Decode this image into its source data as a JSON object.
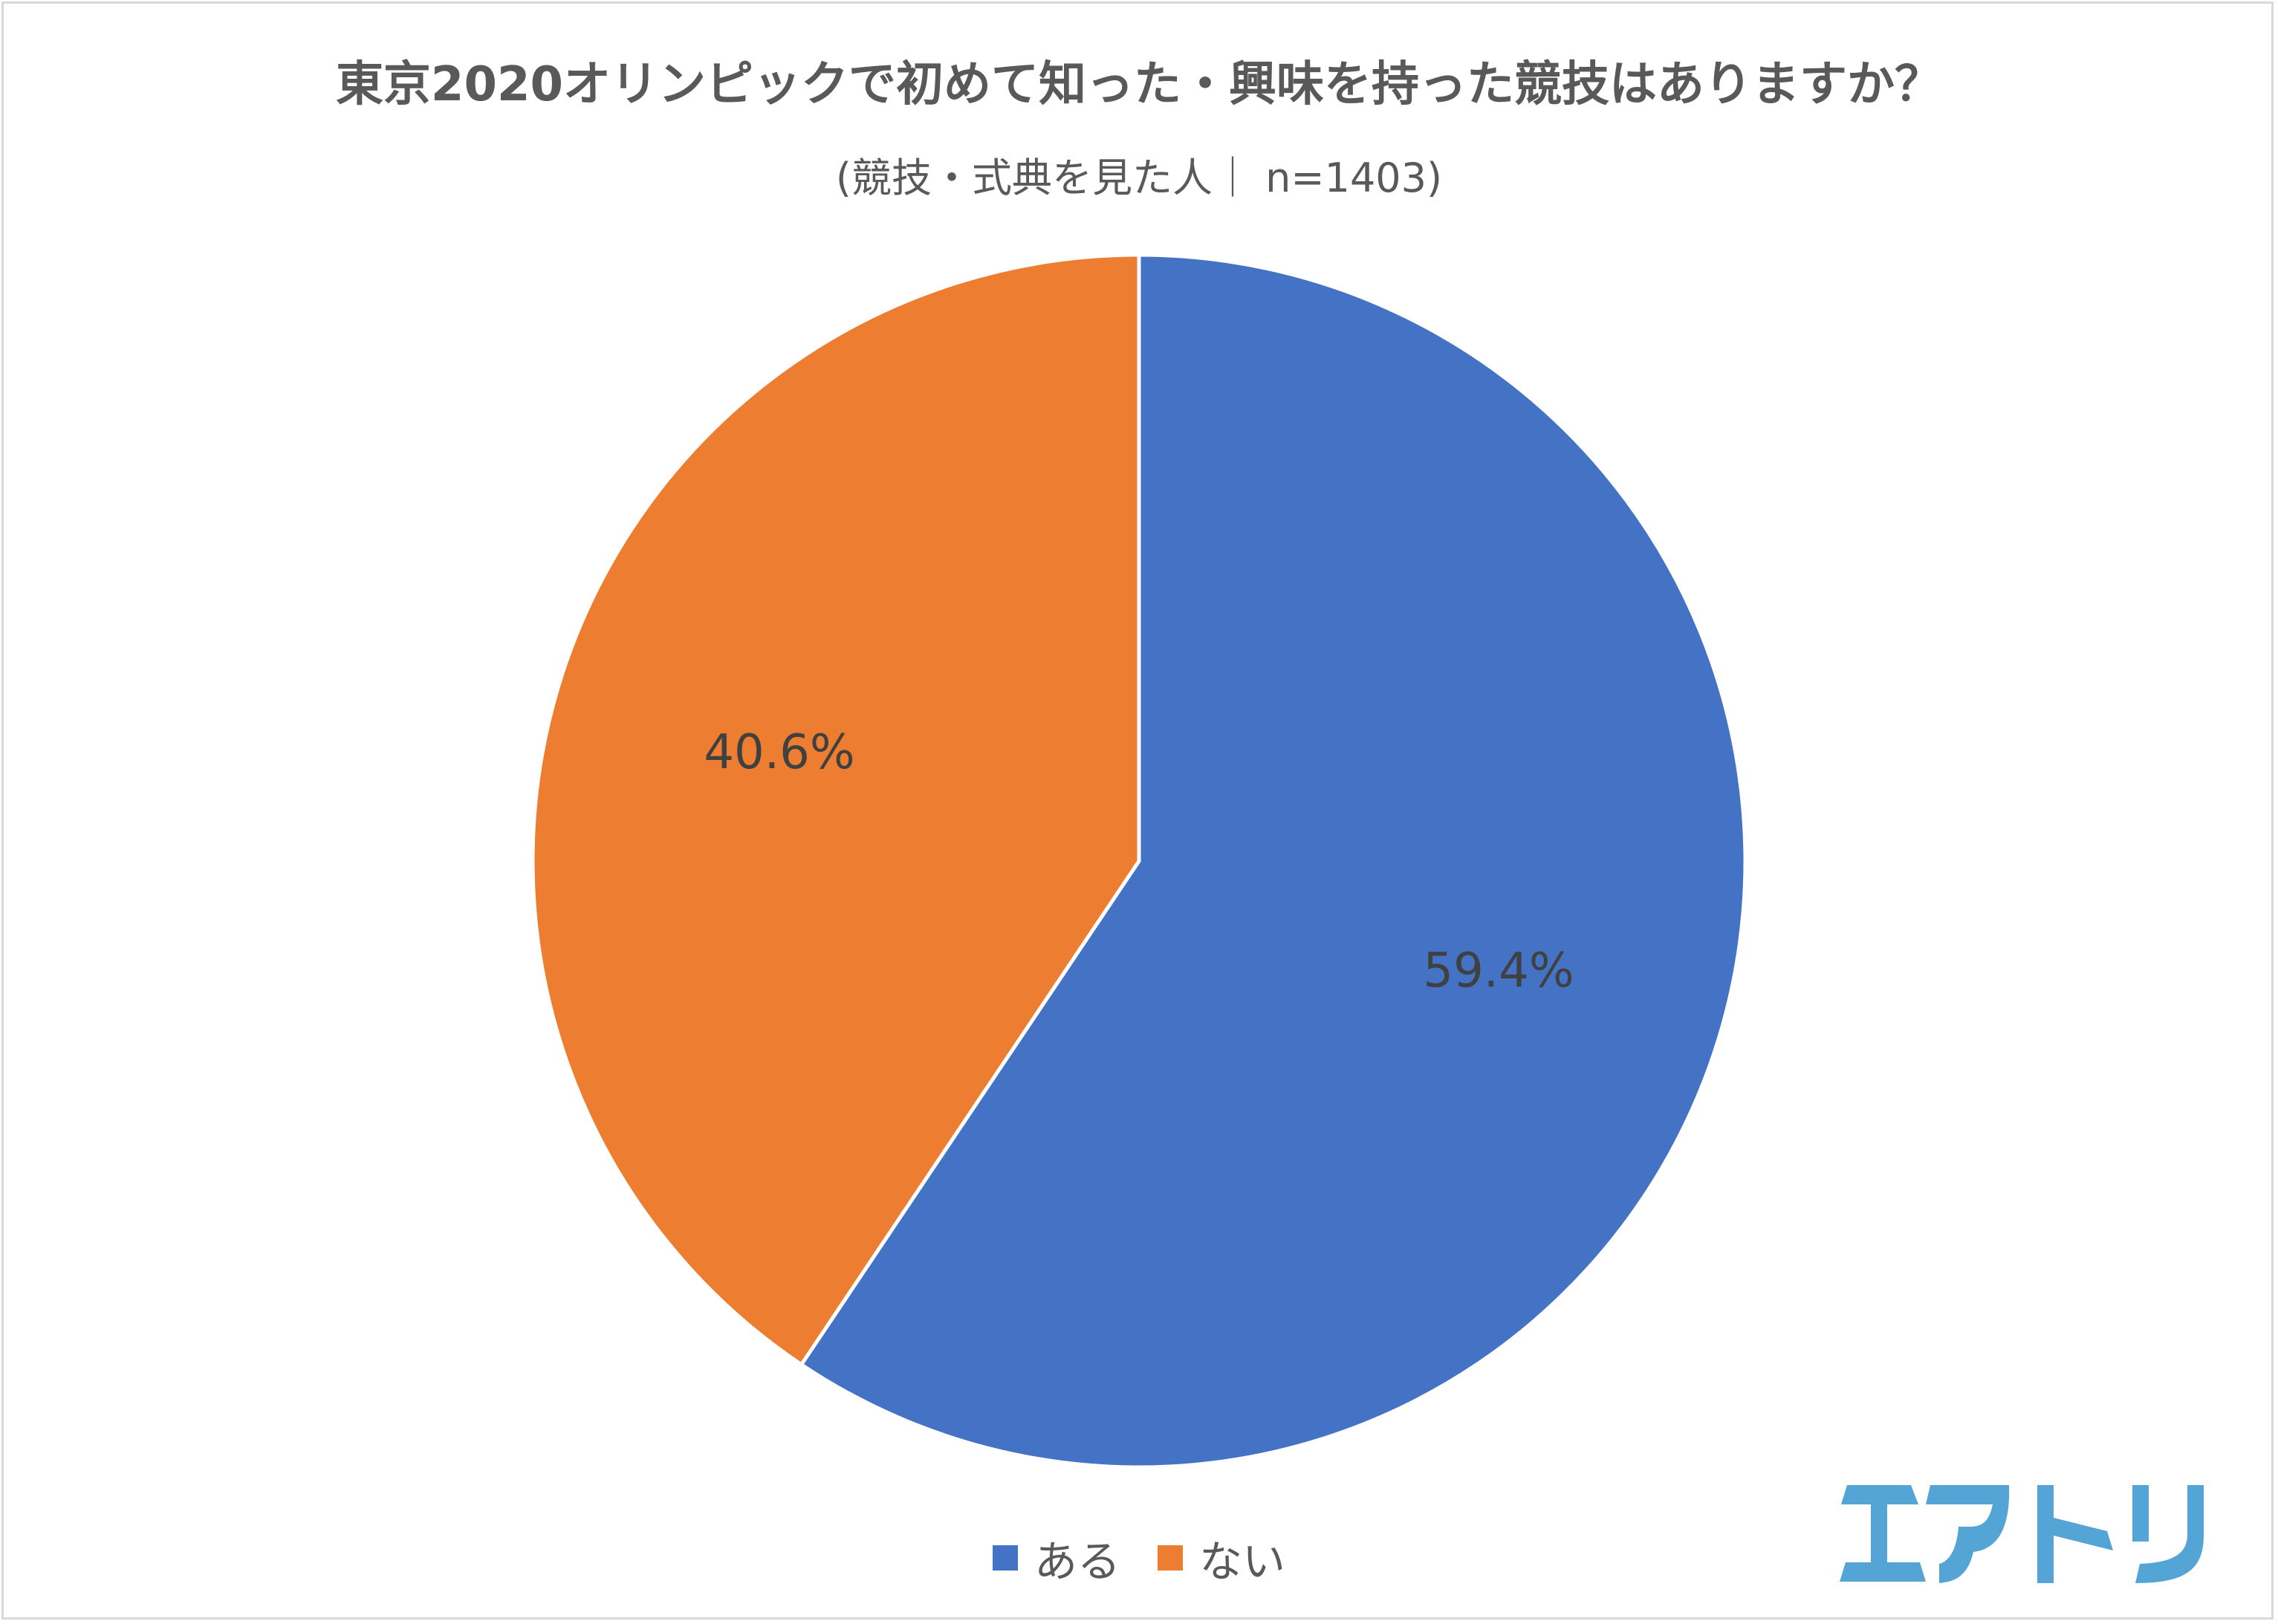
{
  "chart_data": {
    "type": "pie",
    "title": "東京2020オリンピックで初めて知った・興味を持った競技はありますか？",
    "subtitle": "(競技・式典を見た人｜ n=1403)",
    "categories": [
      "ある",
      "ない"
    ],
    "values": [
      59.4,
      40.6
    ],
    "labels": [
      "59.4%",
      "40.6%"
    ],
    "colors": [
      "#4472C4",
      "#ED7D31"
    ],
    "legend_position": "bottom"
  },
  "logo": {
    "text": "エアトリ",
    "color": "#54A5D6"
  }
}
